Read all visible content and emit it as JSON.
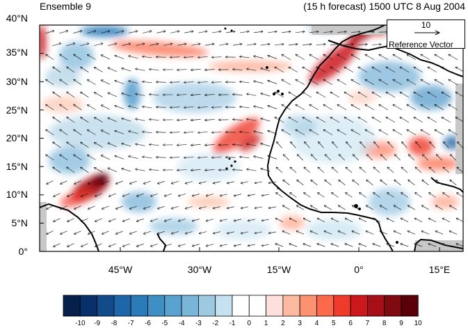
{
  "header": {
    "ensemble_label": "Ensemble 9",
    "forecast_label": "(15 h forecast) 1500 UTC 8 Aug 2004"
  },
  "axes": {
    "lat_labels": [
      "40°N",
      "35°N",
      "30°N",
      "25°N",
      "20°N",
      "15°N",
      "10°N",
      "5°N",
      "0°"
    ],
    "lon_labels": [
      "45°W",
      "30°W",
      "15°W",
      "0°",
      "15°E"
    ]
  },
  "reference_vector": {
    "magnitude": "10",
    "label": "Reference Vector"
  },
  "colorbar": {
    "labels": [
      "-10",
      "-9",
      "-8",
      "-7",
      "-6",
      "-5",
      "-4",
      "-3",
      "-2",
      "-1",
      "0",
      "1",
      "2",
      "3",
      "4",
      "5",
      "6",
      "7",
      "8",
      "9",
      "10"
    ],
    "colors": [
      "#05204a",
      "#08306b",
      "#134b8a",
      "#1f66a8",
      "#2b7bb9",
      "#3f8fc5",
      "#5aa2cf",
      "#79b5d9",
      "#9ecae1",
      "#c6e2f1",
      "#ffffff",
      "#ffffff",
      "#fde0dd",
      "#fcbba1",
      "#fc9272",
      "#fb6a4a",
      "#ef3b2c",
      "#cb181d",
      "#a50f15",
      "#7f0a0f",
      "#5a0009"
    ]
  },
  "colors": {
    "land_outline": "#000000",
    "missing": "#c0c0c0"
  }
}
